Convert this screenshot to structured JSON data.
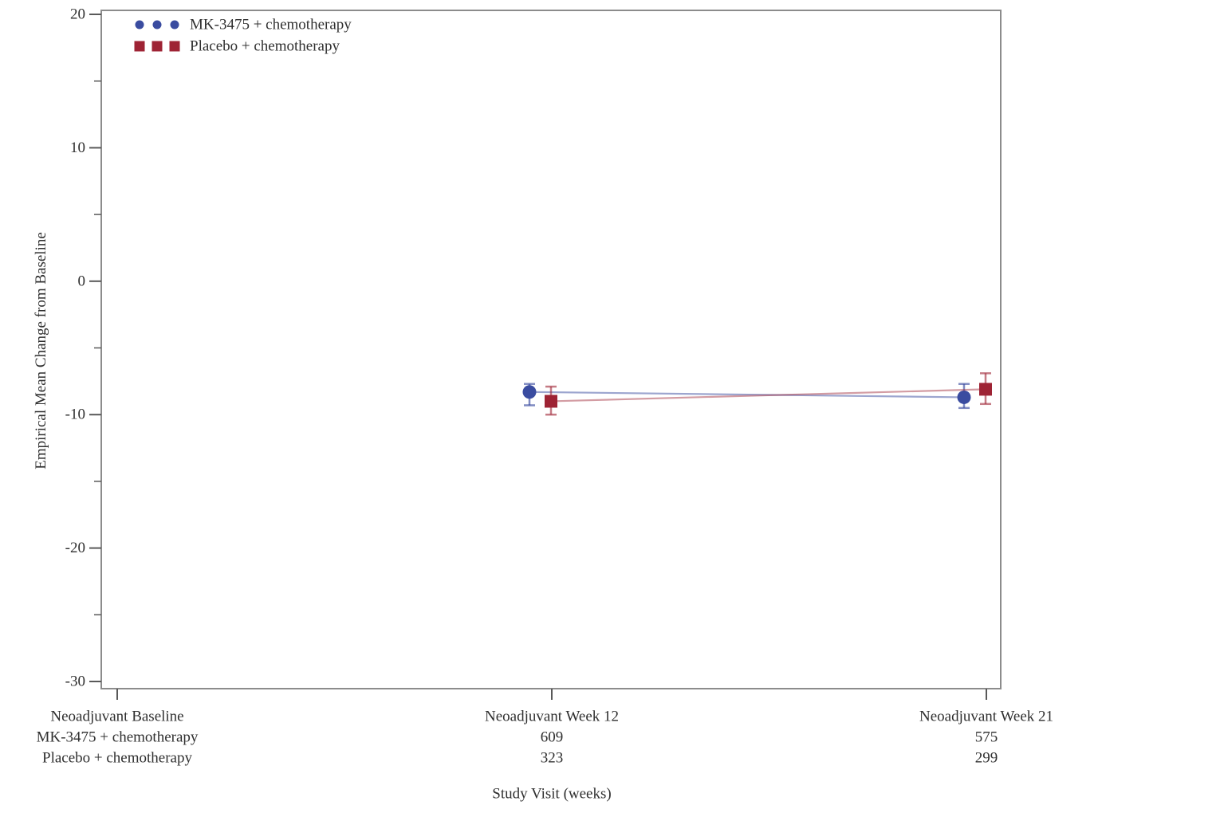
{
  "chart_data": {
    "type": "line",
    "title": "",
    "xlabel": "Study Visit (weeks)",
    "ylabel": "Empirical Mean Change from Baseline",
    "ylim": [
      -30,
      20
    ],
    "y_major_ticks": [
      20,
      10,
      0,
      -10,
      -20,
      -30
    ],
    "y_minor_ticks": [
      15,
      5,
      -5,
      -15,
      -25
    ],
    "grid": "off",
    "legend_position": "top-left-inside",
    "categories": [
      "Neoadjuvant Baseline",
      "Neoadjuvant Week 12",
      "Neoadjuvant Week 21"
    ],
    "series": [
      {
        "name": "MK-3475 + chemotherapy",
        "marker": "circle",
        "color": "#3a4ca0",
        "line_opacity": 0.5,
        "errorbar_opacity": 0.65,
        "points": [
          null,
          {
            "mean": -8.3,
            "ci_low": -9.3,
            "ci_high": -7.7
          },
          {
            "mean": -8.7,
            "ci_low": -9.5,
            "ci_high": -7.7
          }
        ],
        "n_counts": [
          "",
          "609",
          "575"
        ]
      },
      {
        "name": "Placebo + chemotherapy",
        "marker": "square",
        "color": "#9e2334",
        "line_opacity": 0.45,
        "errorbar_opacity": 0.6,
        "points": [
          null,
          {
            "mean": -9.0,
            "ci_low": -10.0,
            "ci_high": -7.9
          },
          {
            "mean": -8.1,
            "ci_low": -9.2,
            "ci_high": -6.9
          }
        ],
        "n_counts": [
          "",
          "323",
          "299"
        ]
      }
    ]
  },
  "colors": {
    "text": "#2f2f2f",
    "axis_border": "#8c8c8c",
    "tick": "#595959",
    "background": "#ffffff"
  }
}
